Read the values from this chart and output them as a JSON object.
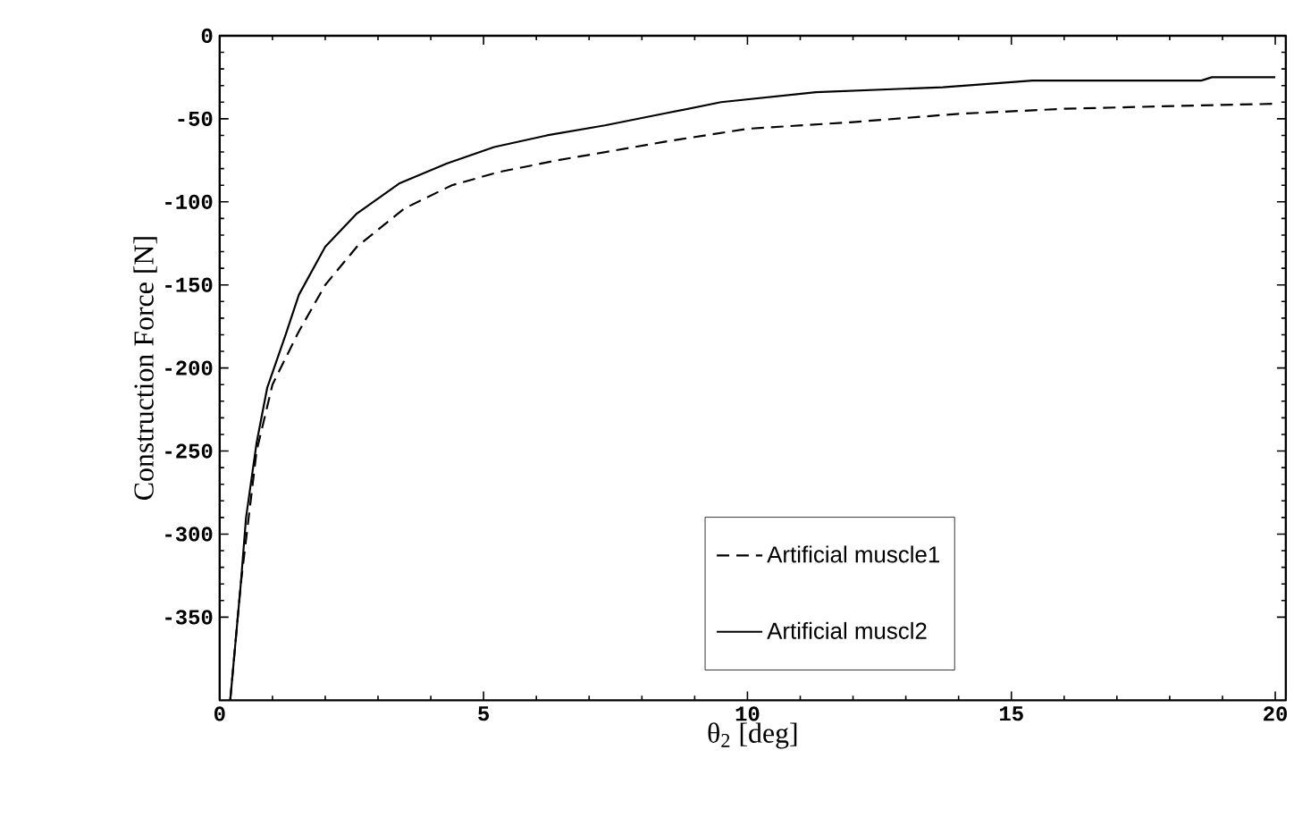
{
  "chart_data": {
    "type": "line",
    "xlabel": "θ$_{2}$   [deg]",
    "ylabel": "Construction Force [N]",
    "xlim": [
      0,
      20.2
    ],
    "ylim": [
      -400,
      0
    ],
    "xticks": [
      0,
      5,
      10,
      15,
      20
    ],
    "yticks": [
      0,
      -50,
      -100,
      -150,
      -200,
      -250,
      -300,
      -350
    ],
    "legend": "bottom right",
    "grid": false,
    "marker": "none",
    "series": [
      {
        "name": "Artificial muscle1",
        "color": "#000000",
        "line_style": "dashed",
        "x": [
          0.2,
          0.4,
          0.7,
          1.0,
          1.5,
          2.0,
          2.6,
          3.5,
          4.4,
          5.3,
          6.4,
          7.5,
          8.4,
          10,
          12,
          14,
          16,
          18.5,
          20
        ],
        "values": [
          -400,
          -330,
          -250,
          -210,
          -178,
          -150,
          -127,
          -104,
          -90,
          -82,
          -75,
          -69,
          -64,
          -56,
          -52,
          -47,
          -44,
          -42,
          -41
        ]
      },
      {
        "name": "Artificial muscl2",
        "color": "#000000",
        "line_style": "solid",
        "x": [
          0.2,
          0.3,
          0.4,
          0.5,
          0.7,
          0.9,
          1.25,
          1.5,
          2.0,
          2.6,
          3.4,
          4.3,
          5.2,
          6.2,
          7.3,
          8.4,
          9.5,
          11.3,
          13.7,
          15.4,
          18.6,
          18.8,
          20
        ],
        "values": [
          -400,
          -365,
          -330,
          -290,
          -245,
          -212,
          -180,
          -156,
          -127,
          -107,
          -89,
          -77,
          -67,
          -60,
          -54,
          -47,
          -40,
          -34,
          -31,
          -27,
          -27,
          -25,
          -25
        ]
      }
    ]
  }
}
